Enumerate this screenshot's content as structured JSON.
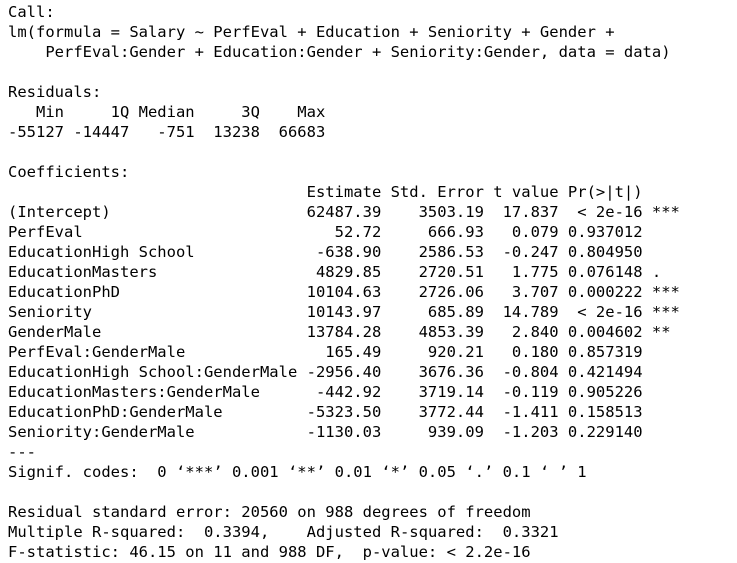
{
  "call": {
    "header": "Call:",
    "formula_line_1": "lm(formula = Salary ~ PerfEval + Education + Seniority + Gender +",
    "formula_line_2": "    PerfEval:Gender + Education:Gender + Seniority:Gender, data = data)"
  },
  "residuals": {
    "header": "Residuals:",
    "labels_line": "   Min     1Q Median     3Q    Max ",
    "values_line": "-55127 -14447   -751  13238  66683 "
  },
  "coefficients": {
    "header": "Coefficients:",
    "column_header_line": "                                Estimate Std. Error t value Pr(>|t|)    ",
    "rows": [
      {
        "term": "(Intercept)",
        "line": "(Intercept)                     62487.39    3503.19  17.837  < 2e-16 ***"
      },
      {
        "term": "PerfEval",
        "line": "PerfEval                           52.72     666.93   0.079 0.937012    "
      },
      {
        "term": "EducationHigh School",
        "line": "EducationHigh School             -638.90    2586.53  -0.247 0.804950    "
      },
      {
        "term": "EducationMasters",
        "line": "EducationMasters                 4829.85    2720.51   1.775 0.076148 .  "
      },
      {
        "term": "EducationPhD",
        "line": "EducationPhD                    10104.63    2726.06   3.707 0.000222 ***"
      },
      {
        "term": "Seniority",
        "line": "Seniority                       10143.97     685.89  14.789  < 2e-16 ***"
      },
      {
        "term": "GenderMale",
        "line": "GenderMale                      13784.28    4853.39   2.840 0.004602 ** "
      },
      {
        "term": "PerfEval:GenderMale",
        "line": "PerfEval:GenderMale               165.49     920.21   0.180 0.857319    "
      },
      {
        "term": "EducationHigh School:GenderMale",
        "line": "EducationHigh School:GenderMale -2956.40    3676.36  -0.804 0.421494    "
      },
      {
        "term": "EducationMasters:GenderMale",
        "line": "EducationMasters:GenderMale      -442.92    3719.14  -0.119 0.905226    "
      },
      {
        "term": "EducationPhD:GenderMale",
        "line": "EducationPhD:GenderMale         -5323.50    3772.44  -1.411 0.158513    "
      },
      {
        "term": "Seniority:GenderMale",
        "line": "Seniority:GenderMale            -1130.03     939.09  -1.203 0.229140    "
      }
    ],
    "separator": "---",
    "signif_codes": "Signif. codes:  0 ‘***’ 0.001 ‘**’ 0.01 ‘*’ 0.05 ‘.’ 0.1 ‘ ’ 1"
  },
  "summary": {
    "residual_standard_error": "Residual standard error: 20560 on 988 degrees of freedom",
    "r_squared": "Multiple R-squared:  0.3394,\tAdjusted R-squared:  0.3321 ",
    "f_statistic": "F-statistic: 46.15 on 11 and 988 DF,  p-value: < 2.2e-16"
  }
}
